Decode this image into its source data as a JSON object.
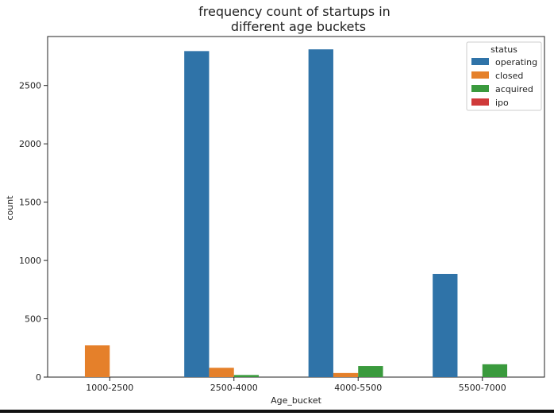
{
  "chart_data": {
    "type": "bar",
    "title_lines": [
      "frequency count of startups in",
      "different age buckets"
    ],
    "xlabel": "Age_bucket",
    "ylabel": "count",
    "categories": [
      "1000-2500",
      "2500-4000",
      "4000-5500",
      "5500-7000"
    ],
    "ylim": [
      0,
      2920
    ],
    "yticks": [
      0,
      500,
      1000,
      1500,
      2000,
      2500
    ],
    "legend": {
      "title": "status",
      "position": "top-right"
    },
    "series": [
      {
        "name": "operating",
        "color": "#2f73a8",
        "values": [
          0,
          2795,
          2810,
          885
        ]
      },
      {
        "name": "closed",
        "color": "#e5802a",
        "values": [
          272,
          80,
          35,
          0
        ]
      },
      {
        "name": "acquired",
        "color": "#3a9a3d",
        "values": [
          0,
          18,
          95,
          110
        ]
      },
      {
        "name": "ipo",
        "color": "#cf3a3a",
        "values": [
          0,
          0,
          0,
          0
        ]
      }
    ],
    "grid": false
  }
}
